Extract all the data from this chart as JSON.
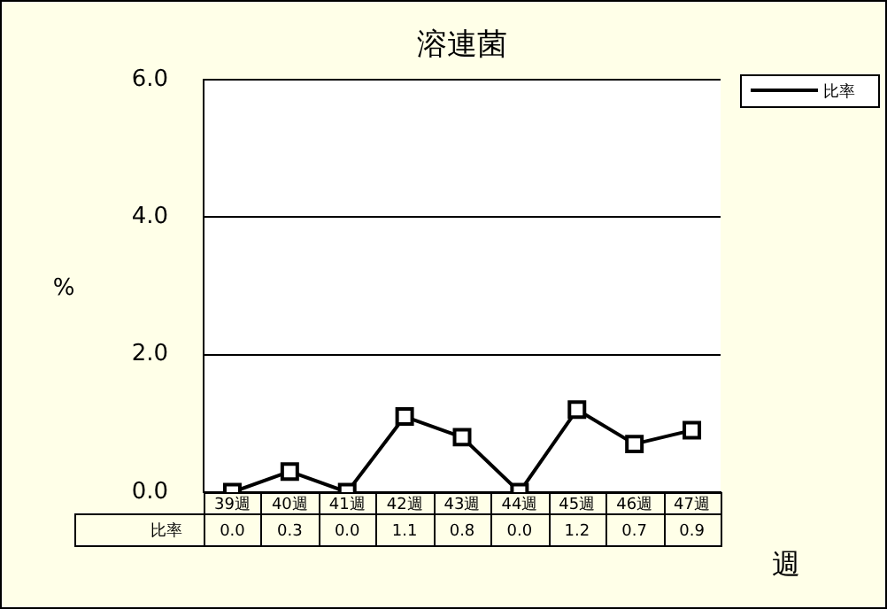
{
  "chart_data": {
    "type": "line",
    "title": "溶連菌",
    "xlabel": "週",
    "ylabel": "%",
    "categories": [
      "39週",
      "40週",
      "41週",
      "42週",
      "43週",
      "44週",
      "45週",
      "46週",
      "47週"
    ],
    "series": [
      {
        "name": "比率",
        "color": "#000000",
        "values": [
          0.0,
          0.3,
          0.0,
          1.1,
          0.8,
          0.0,
          1.2,
          0.7,
          0.9
        ],
        "value_labels": [
          "0.0",
          "0.3",
          "0.0",
          "1.1",
          "0.8",
          "0.0",
          "1.2",
          "0.7",
          "0.9"
        ]
      }
    ],
    "ylim": [
      0,
      6
    ],
    "yticks": [
      {
        "value": 0,
        "label": "0.0"
      },
      {
        "value": 2,
        "label": "2.0"
      },
      {
        "value": 4,
        "label": "4.0"
      },
      {
        "value": 6,
        "label": "6.0"
      }
    ],
    "grid": "y",
    "legend": "top right",
    "marker": "square",
    "line_style": "solid"
  }
}
